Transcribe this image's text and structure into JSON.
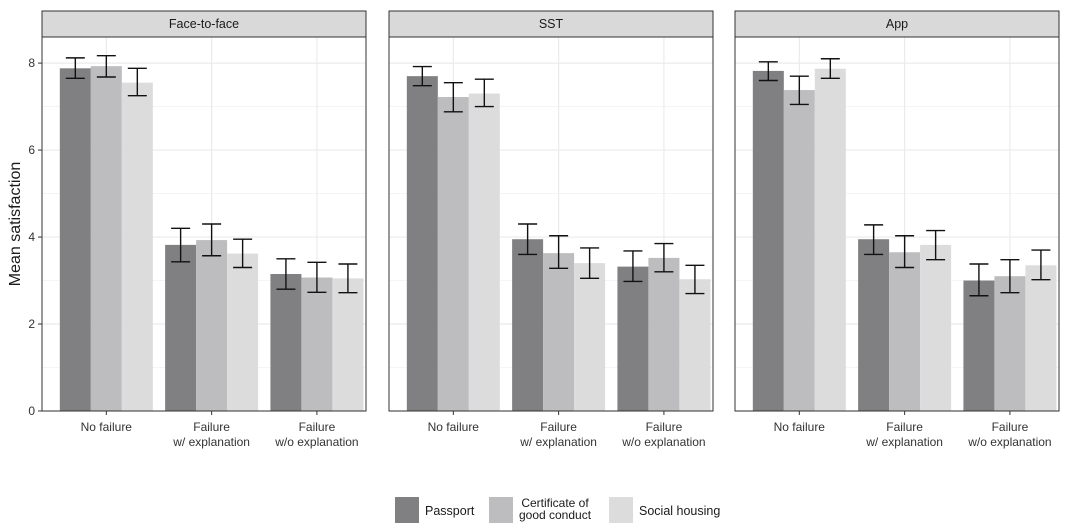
{
  "chart_data": {
    "type": "bar",
    "ylabel": "Mean satisfaction",
    "ylim": [
      0,
      8.6
    ],
    "yticks": [
      0,
      2,
      4,
      6,
      8
    ],
    "grid": true,
    "legend_position": "bottom",
    "categories": [
      {
        "line1": "No failure",
        "line2": ""
      },
      {
        "line1": "Failure",
        "line2": "w/ explanation"
      },
      {
        "line1": "Failure",
        "line2": "w/o explanation"
      }
    ],
    "series": [
      {
        "name": "Passport",
        "name_lines": [
          "Passport"
        ],
        "color": "#808082"
      },
      {
        "name": "Certificate of good conduct",
        "name_lines": [
          "Certificate of",
          "good conduct"
        ],
        "color": "#bdbdbf"
      },
      {
        "name": "Social housing",
        "name_lines": [
          "Social housing"
        ],
        "color": "#dcdcdd"
      }
    ],
    "panels": [
      {
        "title": "Face-to-face",
        "values": [
          [
            7.88,
            3.82,
            3.15
          ],
          [
            7.93,
            3.93,
            3.07
          ],
          [
            7.55,
            3.62,
            3.05
          ]
        ],
        "err_low": [
          [
            7.65,
            3.43,
            2.8
          ],
          [
            7.68,
            3.57,
            2.73
          ],
          [
            7.25,
            3.3,
            2.72
          ]
        ],
        "err_high": [
          [
            8.12,
            4.2,
            3.5
          ],
          [
            8.17,
            4.3,
            3.42
          ],
          [
            7.88,
            3.95,
            3.38
          ]
        ]
      },
      {
        "title": "SST",
        "values": [
          [
            7.7,
            3.95,
            3.32
          ],
          [
            7.22,
            3.63,
            3.52
          ],
          [
            7.3,
            3.4,
            3.03
          ]
        ],
        "err_low": [
          [
            7.48,
            3.6,
            2.98
          ],
          [
            6.88,
            3.28,
            3.2
          ],
          [
            7.0,
            3.05,
            2.7
          ]
        ],
        "err_high": [
          [
            7.92,
            4.3,
            3.68
          ],
          [
            7.55,
            4.03,
            3.85
          ],
          [
            7.63,
            3.75,
            3.35
          ]
        ]
      },
      {
        "title": "App",
        "values": [
          [
            7.82,
            3.95,
            3.0
          ],
          [
            7.38,
            3.65,
            3.1
          ],
          [
            7.87,
            3.82,
            3.35
          ]
        ],
        "err_low": [
          [
            7.6,
            3.6,
            2.65
          ],
          [
            7.05,
            3.3,
            2.72
          ],
          [
            7.65,
            3.48,
            3.02
          ]
        ],
        "err_high": [
          [
            8.03,
            4.28,
            3.38
          ],
          [
            7.7,
            4.03,
            3.48
          ],
          [
            8.1,
            4.15,
            3.7
          ]
        ]
      }
    ]
  }
}
